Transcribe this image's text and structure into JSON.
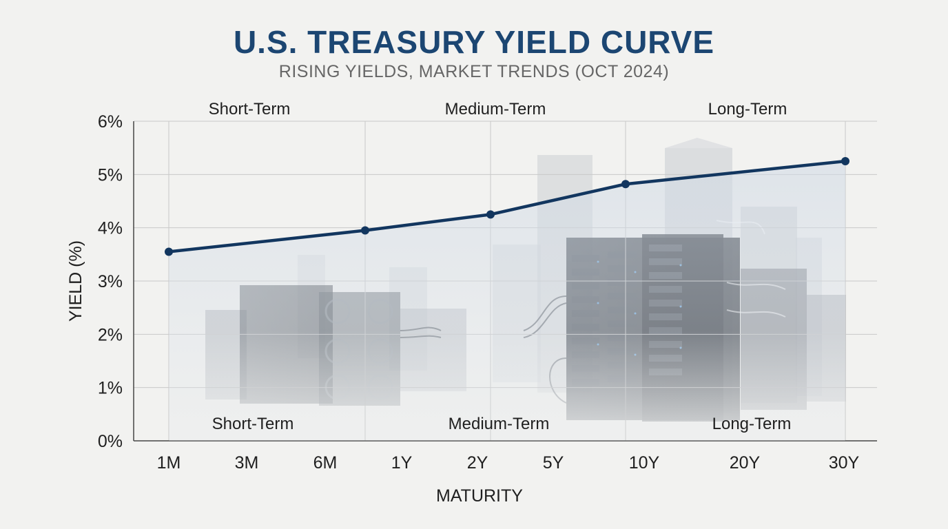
{
  "chart_data": {
    "type": "line",
    "title": "U.S. TREASURY YIELD CURVE",
    "subtitle": "RISING YIELDS, MARKET TRENDS (OCT 2024)",
    "xlabel": "MATURITY",
    "ylabel": "YIELD (%)",
    "categories": [
      "1M",
      "3M",
      "6M",
      "1Y",
      "2Y",
      "5Y",
      "10Y",
      "20Y",
      "30Y"
    ],
    "series": [
      {
        "points": [
          {
            "x": "1M",
            "y": 3.55
          },
          {
            "x": "1Y",
            "y": 3.95
          },
          {
            "x": "2Y",
            "y": 4.25
          },
          {
            "x": "10Y",
            "y": 4.82
          },
          {
            "x": "30Y",
            "y": 5.25
          }
        ]
      }
    ],
    "y_ticks": [
      "0%",
      "1%",
      "2%",
      "3%",
      "4%",
      "5%",
      "6%"
    ],
    "ylim": [
      0,
      6
    ],
    "grid": true,
    "segments_top": [
      "Short-Term",
      "Medium-Term",
      "Long-Term"
    ],
    "segments_bottom": [
      "Short-Term",
      "Medium-Term",
      "Long-Term"
    ],
    "colors": {
      "line": "#12365f",
      "title": "#1c4672",
      "grid": "#c8c8c8",
      "area": "#d7dfe8"
    }
  }
}
